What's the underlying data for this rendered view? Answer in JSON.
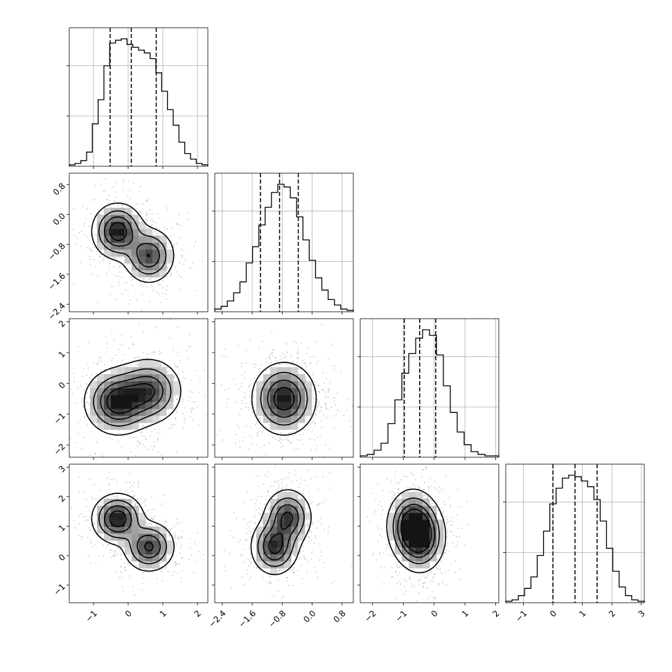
{
  "chart_data": {
    "type": "corner",
    "grid": true,
    "dimensions": 4,
    "xticks": [
      [
        -1,
        0,
        1,
        2
      ],
      [
        -2.4,
        -1.6,
        -0.8,
        0.0,
        0.8
      ],
      [
        -2,
        -1,
        0,
        1,
        2
      ],
      [
        -1,
        0,
        1,
        2,
        3
      ]
    ],
    "xtick_labels": [
      [
        "−1",
        "0",
        "1",
        "2"
      ],
      [
        "−2.4",
        "−1.6",
        "−0.8",
        "0.0",
        "0.8"
      ],
      [
        "−2",
        "−1",
        "0",
        "1",
        "2"
      ],
      [
        "−1",
        "0",
        "1",
        "2",
        "3"
      ]
    ],
    "yticks": [
      [],
      [
        0.8,
        0.0,
        -0.8,
        -1.6,
        -2.4
      ],
      [
        2,
        1,
        0,
        -1,
        -2
      ],
      [
        3,
        2,
        1,
        0,
        -1
      ]
    ],
    "ytick_labels": [
      [],
      [
        "0.8",
        "0.0",
        "−0.8",
        "−1.6",
        "−2.4"
      ],
      [
        "2",
        "1",
        "0",
        "−1",
        "−2"
      ],
      [
        "3",
        "2",
        "1",
        "0",
        "−1"
      ]
    ],
    "ranges": [
      [
        -1.7,
        2.3
      ],
      [
        -2.6,
        1.1
      ],
      [
        -2.4,
        2.1
      ],
      [
        -1.6,
        3.1
      ]
    ],
    "quantiles": [
      [
        -0.52,
        0.09,
        0.81
      ],
      [
        -1.38,
        -0.87,
        -0.37
      ],
      [
        -0.97,
        -0.47,
        0.05
      ],
      [
        0.0,
        0.75,
        1.5
      ]
    ],
    "histograms": [
      {
        "bins": [
          -1.7,
          2.3
        ],
        "counts": [
          1,
          2,
          4,
          10,
          30,
          47,
          71,
          87,
          89,
          90,
          86,
          84,
          82,
          80,
          76,
          66,
          53,
          40,
          29,
          17,
          9,
          5,
          2,
          1
        ]
      },
      {
        "bins": [
          -2.6,
          1.1
        ],
        "counts": [
          2,
          4,
          8,
          14,
          22,
          36,
          48,
          64,
          77,
          88,
          94,
          92,
          84,
          70,
          53,
          38,
          25,
          16,
          9,
          5,
          2,
          1
        ]
      },
      {
        "bins": [
          -2.4,
          2.1
        ],
        "counts": [
          1,
          2,
          5,
          10,
          24,
          41,
          60,
          74,
          85,
          91,
          87,
          73,
          51,
          32,
          18,
          9,
          4,
          2,
          1,
          1
        ]
      },
      {
        "bins": [
          -1.6,
          3.1
        ],
        "counts": [
          1,
          2,
          5,
          10,
          18,
          33,
          50,
          69,
          80,
          87,
          89,
          88,
          85,
          81,
          72,
          57,
          38,
          22,
          11,
          5,
          2,
          1
        ]
      }
    ],
    "density_peaks": [
      {
        "i": 1,
        "j": 0,
        "modes": [
          [
            -0.3,
            -0.45,
            1.0
          ],
          [
            0.6,
            -1.1,
            0.8
          ]
        ],
        "sx": 0.35,
        "sy": 0.35
      },
      {
        "i": 2,
        "j": 0,
        "modes": [
          [
            -0.3,
            -0.6,
            1.0
          ],
          [
            0.6,
            -0.25,
            0.8
          ]
        ],
        "sx": 0.45,
        "sy": 0.5
      },
      {
        "i": 2,
        "j": 1,
        "modes": [
          [
            -0.75,
            -0.5,
            1.0
          ]
        ],
        "sx": 0.4,
        "sy": 0.55
      },
      {
        "i": 3,
        "j": 0,
        "modes": [
          [
            -0.3,
            1.25,
            1.0
          ],
          [
            0.6,
            0.3,
            0.85
          ]
        ],
        "sx": 0.35,
        "sy": 0.4
      },
      {
        "i": 3,
        "j": 1,
        "modes": [
          [
            -1.0,
            0.3,
            0.9
          ],
          [
            -0.65,
            1.3,
            0.85
          ]
        ],
        "sx": 0.3,
        "sy": 0.45
      },
      {
        "i": 3,
        "j": 2,
        "modes": [
          [
            -0.7,
            1.05,
            1.0
          ],
          [
            -0.45,
            0.6,
            0.9
          ]
        ],
        "sx": 0.38,
        "sy": 0.55
      }
    ]
  }
}
